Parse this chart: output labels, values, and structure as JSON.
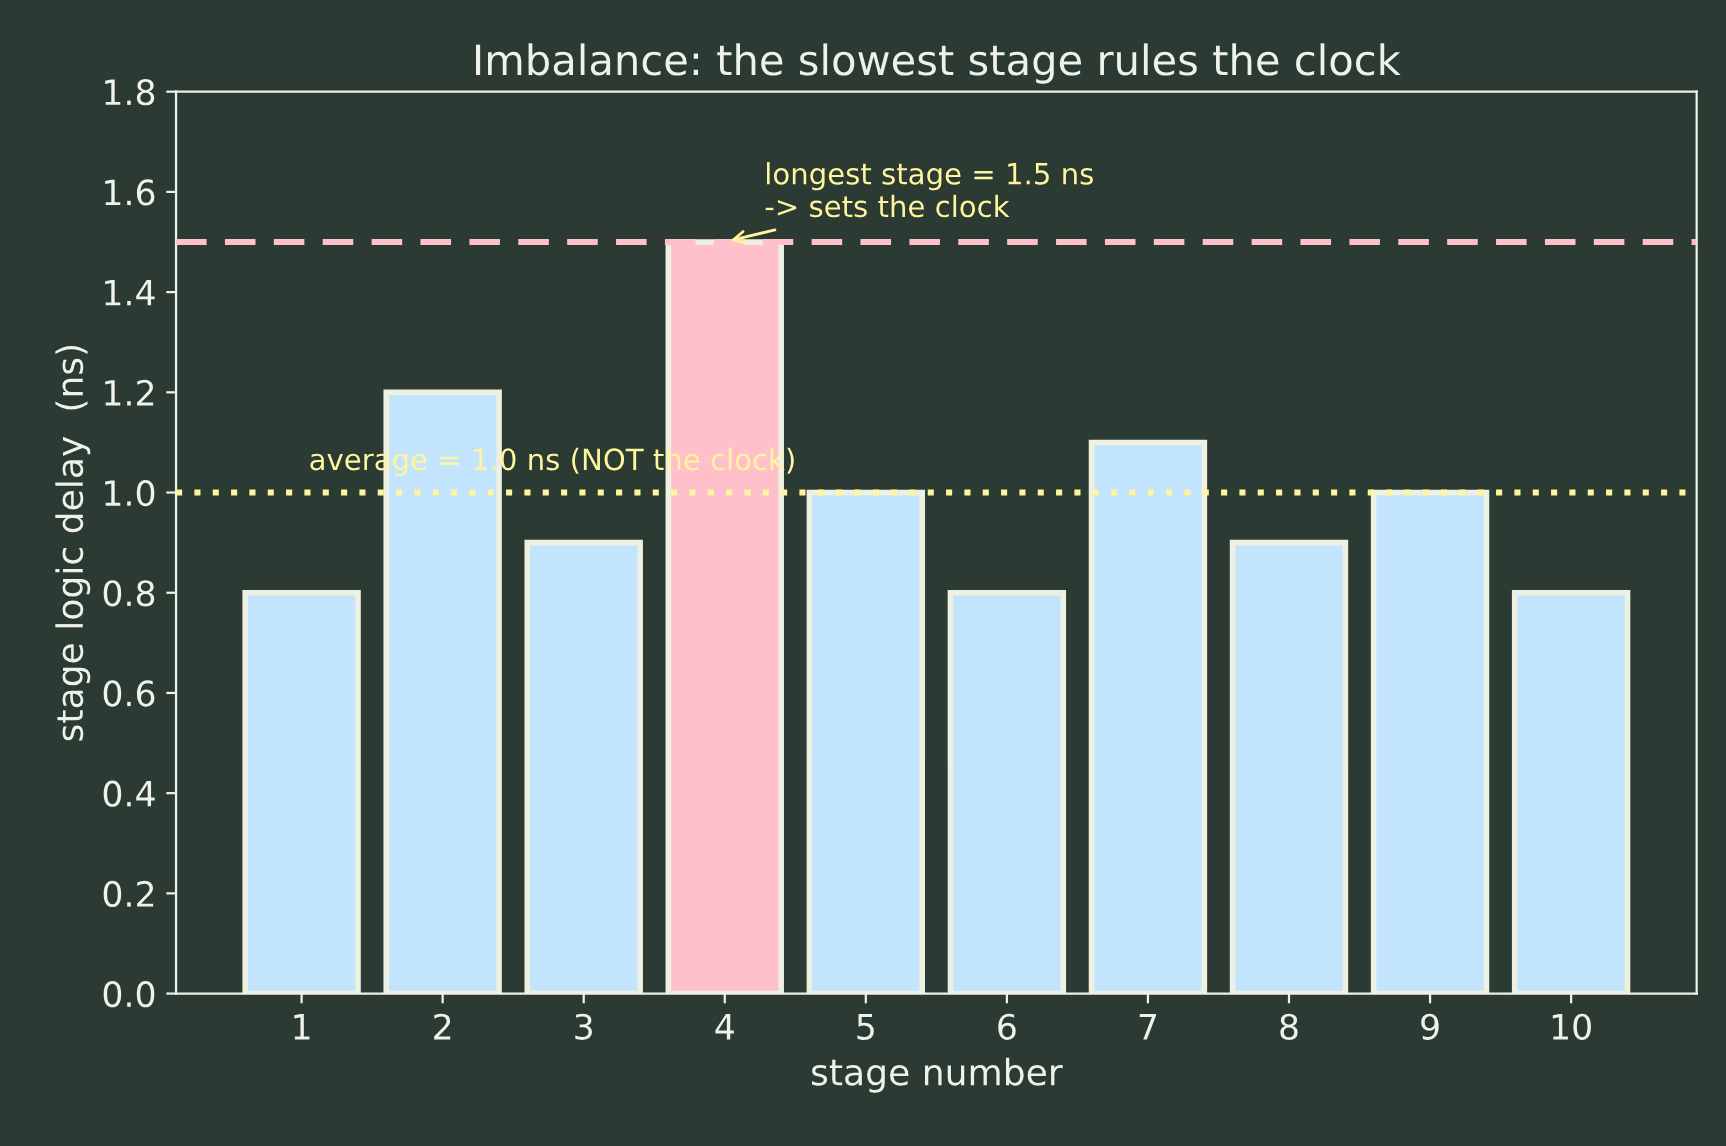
{
  "chart_data": {
    "type": "bar",
    "title": "Imbalance: the slowest stage rules the clock",
    "xlabel": "stage number",
    "ylabel": "stage logic delay  (ns)",
    "categories": [
      "1",
      "2",
      "3",
      "4",
      "5",
      "6",
      "7",
      "8",
      "9",
      "10"
    ],
    "values": [
      0.8,
      1.2,
      0.9,
      1.5,
      1.0,
      0.8,
      1.1,
      0.9,
      1.0,
      0.8
    ],
    "colors": [
      "#c2e4fd",
      "#c2e4fd",
      "#c2e4fd",
      "#ffc0cb",
      "#c2e4fd",
      "#c2e4fd",
      "#c2e4fd",
      "#c2e4fd",
      "#c2e4fd",
      "#c2e4fd"
    ],
    "ylim": [
      0,
      1.8
    ],
    "yticks": [
      {
        "value": 0,
        "label": "0.0"
      },
      {
        "value": 0.2,
        "label": "0.2"
      },
      {
        "value": 0.4,
        "label": "0.4"
      },
      {
        "value": 0.6,
        "label": "0.6"
      },
      {
        "value": 0.8,
        "label": "0.8"
      },
      {
        "value": 1,
        "label": "1.0"
      },
      {
        "value": 1.2,
        "label": "1.2"
      },
      {
        "value": 1.4,
        "label": "1.4"
      },
      {
        "value": 1.6,
        "label": "1.6"
      },
      {
        "value": 1.8,
        "label": "1.8"
      }
    ],
    "grid": false,
    "ref_lines": [
      {
        "axis": "y",
        "value": 1.5,
        "color": "#ffc0cb",
        "line_style": "dashed"
      },
      {
        "axis": "y",
        "value": 1.0,
        "color": "#fff59d",
        "line_style": "dotted",
        "label": "average = 1.0 ns (NOT the clock)"
      }
    ],
    "annotations": [
      {
        "text": "longest stage = 1.5 ns\n-> sets the clock",
        "x": "4",
        "y": 1.5
      }
    ]
  }
}
